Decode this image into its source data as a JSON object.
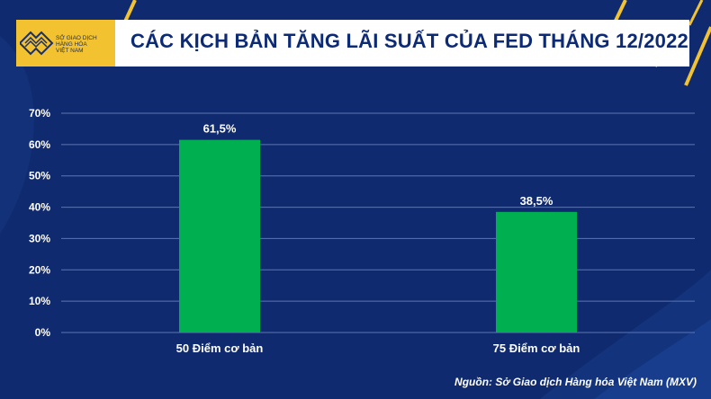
{
  "brand": {
    "logo_lines": [
      "SỞ GIAO DỊCH",
      "HÀNG HÓA",
      "VIỆT NAM"
    ],
    "accent_color": "#f2c230",
    "title_color": "#0d2a75"
  },
  "chart_data": {
    "type": "bar",
    "title": "CÁC KỊCH BẢN TĂNG LÃI SUẤT CỦA FED THÁNG 12/2022",
    "categories": [
      "50 Điểm cơ bản",
      "75 Điểm cơ bản"
    ],
    "values": [
      61.5,
      38.5
    ],
    "data_labels": [
      "61,5%",
      "38,5%"
    ],
    "ylim": [
      0,
      70
    ],
    "yticks": [
      0,
      10,
      20,
      30,
      40,
      50,
      60,
      70
    ],
    "ytick_labels": [
      "0%",
      "10%",
      "20%",
      "30%",
      "40%",
      "50%",
      "60%",
      "70%"
    ],
    "xlabel": "",
    "ylabel": "",
    "grid": true,
    "bar_color": "#00b050"
  },
  "source": "Nguồn: Sở Giao dịch Hàng hóa Việt Nam (MXV)"
}
